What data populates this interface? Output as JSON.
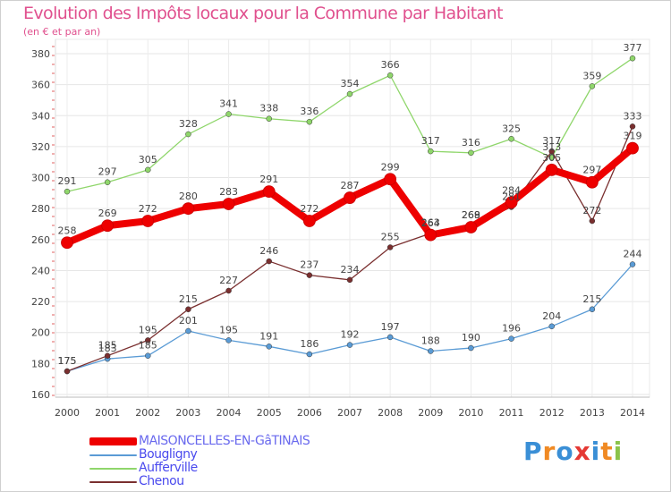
{
  "title": "Evolution des Impôts locaux pour la Commune par Habitant",
  "subtitle": "(en € et par an)",
  "brand": {
    "letters": [
      "P",
      "r",
      "o",
      "x",
      "i",
      "t",
      "i"
    ],
    "colors": [
      "#3a8fd6",
      "#f08a24",
      "#3a8fd6",
      "#e53935",
      "#3a8fd6",
      "#f08a24",
      "#8bc34a"
    ]
  },
  "chart_data": {
    "type": "line",
    "x": [
      2000,
      2001,
      2002,
      2003,
      2004,
      2005,
      2006,
      2007,
      2008,
      2009,
      2010,
      2011,
      2012,
      2013,
      2014
    ],
    "ylim": [
      160,
      380
    ],
    "yticks": [
      160,
      180,
      200,
      220,
      240,
      260,
      280,
      300,
      320,
      340,
      360,
      380
    ],
    "grid": true,
    "legend_position": "bottom-left",
    "series": [
      {
        "name": "MAISONCELLES-EN-GâTINAIS",
        "color": "#ee0000",
        "highlight": true,
        "values": [
          258,
          269,
          272,
          280,
          283,
          291,
          272,
          287,
          299,
          263,
          268,
          284,
          305,
          297,
          319
        ],
        "labels": [
          "258",
          "269",
          "272",
          "280",
          "283",
          "291",
          "272",
          "287",
          "299",
          "263",
          "268",
          "284",
          "305",
          "297",
          "319"
        ]
      },
      {
        "name": "Bougligny",
        "color": "#5a9bd5",
        "highlight": false,
        "values": [
          175,
          183,
          185,
          201,
          195,
          191,
          186,
          192,
          197,
          188,
          190,
          196,
          204,
          215,
          244
        ],
        "labels": [
          "175",
          "183",
          "185",
          "201",
          "195",
          "191",
          "186",
          "192",
          "197",
          "188",
          "190",
          "196",
          "204",
          "215",
          "244"
        ]
      },
      {
        "name": "Aufferville",
        "color": "#8fd66b",
        "highlight": false,
        "values": [
          291,
          297,
          305,
          328,
          341,
          338,
          336,
          354,
          366,
          317,
          316,
          325,
          313,
          359,
          377
        ],
        "labels": [
          "291",
          "297",
          "305",
          "328",
          "341",
          "338",
          "336",
          "354",
          "366",
          "317",
          "316",
          "325",
          "313",
          "359",
          "377"
        ]
      },
      {
        "name": "Chenou",
        "color": "#7a2f2f",
        "highlight": false,
        "values": [
          175,
          185,
          195,
          215,
          227,
          246,
          237,
          234,
          255,
          264,
          269,
          281,
          317,
          272,
          333
        ],
        "labels": [
          "175",
          "185",
          "195",
          "215",
          "227",
          "246",
          "237",
          "234",
          "255",
          "264",
          "269",
          "281",
          "317",
          "272",
          "333"
        ]
      }
    ]
  }
}
